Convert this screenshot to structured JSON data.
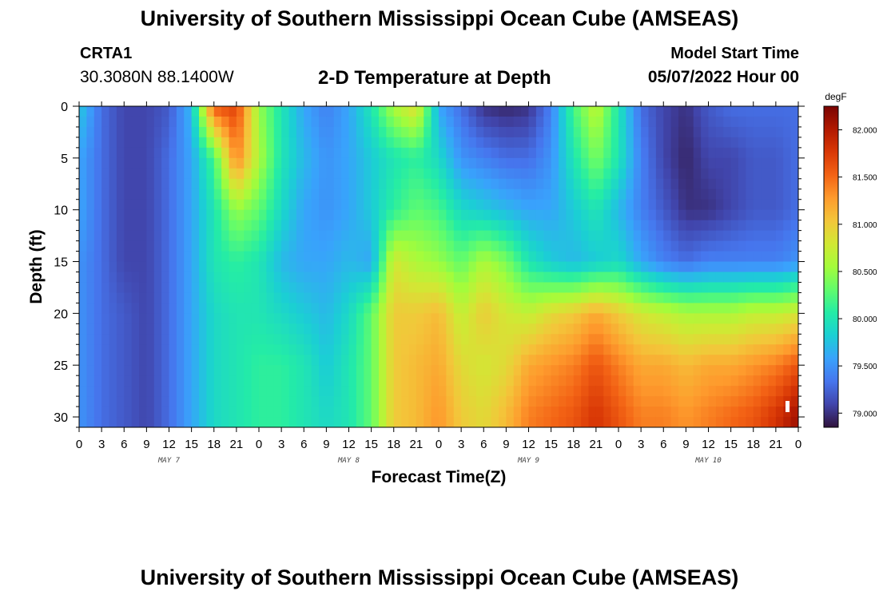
{
  "header": {
    "title": "University of Southern Mississippi Ocean Cube (AMSEAS)",
    "station_id": "CRTA1",
    "coordinates": "30.3080N  88.1400W",
    "plot_title": "2-D Temperature at Depth",
    "model_start_label": "Model Start Time",
    "model_start_value": "05/07/2022 Hour 00"
  },
  "footer": {
    "title": "University of Southern Mississippi Ocean Cube (AMSEAS)"
  },
  "chart_data": {
    "type": "heatmap",
    "title": "2-D Temperature at Depth",
    "xlabel": "Forecast Time(Z)",
    "ylabel": "Depth (ft)",
    "x_tick_labels": [
      "0",
      "3",
      "6",
      "9",
      "12",
      "15",
      "18",
      "21",
      "0",
      "3",
      "6",
      "9",
      "12",
      "15",
      "18",
      "21",
      "0",
      "3",
      "6",
      "9",
      "12",
      "15",
      "18",
      "21",
      "0",
      "3",
      "6",
      "9",
      "12",
      "15",
      "18",
      "21",
      "0"
    ],
    "x_hours_range": [
      0,
      96
    ],
    "day_labels": [
      {
        "text": "MAY 7",
        "hour": 12
      },
      {
        "text": "MAY 8",
        "hour": 36
      },
      {
        "text": "MAY 9",
        "hour": 60
      },
      {
        "text": "MAY 10",
        "hour": 84
      }
    ],
    "y_ticks": [
      0,
      5,
      10,
      15,
      20,
      25,
      30
    ],
    "ylim": [
      0,
      31
    ],
    "y_inverted": true,
    "colorbar": {
      "unit": "degF",
      "ticks": [
        "79.000",
        "79.500",
        "80.000",
        "80.500",
        "81.000",
        "81.500",
        "82.000"
      ],
      "range": [
        78.85,
        82.25
      ],
      "colors": [
        "#30123b",
        "#4145ab",
        "#4675ed",
        "#39a2fc",
        "#1bcfd4",
        "#24eca6",
        "#61fc6c",
        "#a4fc3b",
        "#d1e834",
        "#f3c63a",
        "#fe9b2d",
        "#f36315",
        "#d93806",
        "#b11901",
        "#7a0402"
      ]
    },
    "depths_ft": [
      0,
      5,
      10,
      15,
      20,
      25,
      30
    ],
    "hours": [
      0,
      3,
      6,
      9,
      12,
      15,
      18,
      21,
      24,
      27,
      30,
      33,
      36,
      39,
      42,
      45,
      48,
      51,
      54,
      57,
      60,
      63,
      66,
      69,
      72,
      75,
      78,
      81,
      84,
      87,
      90,
      93,
      96
    ],
    "temperature_degF": [
      [
        79.8,
        79.3,
        79.1,
        79.1,
        79.2,
        79.7,
        81.6,
        81.7,
        80.5,
        80.0,
        79.6,
        79.4,
        79.6,
        80.0,
        80.6,
        80.9,
        79.6,
        79.3,
        79.0,
        78.95,
        79.0,
        79.4,
        80.2,
        80.7,
        80.0,
        79.3,
        79.1,
        79.0,
        79.2,
        79.3,
        79.3,
        79.3,
        79.3
      ],
      [
        79.6,
        79.3,
        79.1,
        79.1,
        79.3,
        79.6,
        80.2,
        81.4,
        80.6,
        80.0,
        79.7,
        79.5,
        79.6,
        79.8,
        80.0,
        80.1,
        79.9,
        79.5,
        79.4,
        79.3,
        79.3,
        79.5,
        80.0,
        80.4,
        80.0,
        79.4,
        79.1,
        78.95,
        79.1,
        79.1,
        79.2,
        79.2,
        79.3
      ],
      [
        79.6,
        79.3,
        79.1,
        79.1,
        79.3,
        79.6,
        80.0,
        80.5,
        80.3,
        79.9,
        79.6,
        79.5,
        79.6,
        79.8,
        80.1,
        80.3,
        80.2,
        79.9,
        79.8,
        79.7,
        79.6,
        79.6,
        79.8,
        80.0,
        79.7,
        79.4,
        79.2,
        79.0,
        79.0,
        79.1,
        79.2,
        79.2,
        79.3
      ],
      [
        79.5,
        79.3,
        79.1,
        79.1,
        79.3,
        79.6,
        80.0,
        80.1,
        80.0,
        79.7,
        79.6,
        79.6,
        79.7,
        79.6,
        80.8,
        80.6,
        80.5,
        80.3,
        80.6,
        80.4,
        80.0,
        79.8,
        79.7,
        79.8,
        79.9,
        79.6,
        79.4,
        79.3,
        79.4,
        79.4,
        79.4,
        79.4,
        79.5
      ],
      [
        79.5,
        79.3,
        79.2,
        79.1,
        79.3,
        79.6,
        79.9,
        80.0,
        80.0,
        79.9,
        79.8,
        79.7,
        79.9,
        80.3,
        81.0,
        81.0,
        81.1,
        80.7,
        81.0,
        80.8,
        80.7,
        80.9,
        81.0,
        81.2,
        81.0,
        80.8,
        80.7,
        80.6,
        80.6,
        80.6,
        80.7,
        80.7,
        80.8
      ],
      [
        79.5,
        79.3,
        79.2,
        79.1,
        79.3,
        79.6,
        79.9,
        80.0,
        80.1,
        80.1,
        80.0,
        79.8,
        80.0,
        80.3,
        81.0,
        81.1,
        81.2,
        80.9,
        80.8,
        80.9,
        81.2,
        81.3,
        81.4,
        81.6,
        81.4,
        81.2,
        81.2,
        81.1,
        81.2,
        81.2,
        81.3,
        81.4,
        81.6
      ],
      [
        79.5,
        79.3,
        79.2,
        79.1,
        79.3,
        79.6,
        79.9,
        80.0,
        80.1,
        80.1,
        80.0,
        79.9,
        80.0,
        80.3,
        81.0,
        81.1,
        81.3,
        81.0,
        80.9,
        81.1,
        81.4,
        81.5,
        81.6,
        81.8,
        81.6,
        81.4,
        81.4,
        81.3,
        81.4,
        81.5,
        81.6,
        81.8,
        82.1
      ]
    ]
  }
}
